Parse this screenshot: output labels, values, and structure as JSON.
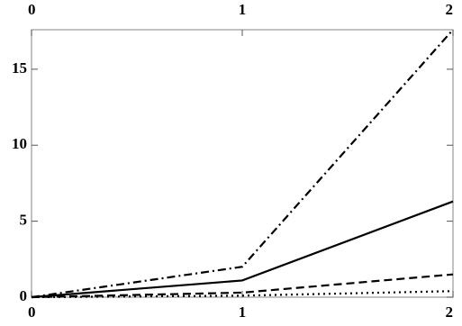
{
  "chart_data": {
    "type": "line",
    "x": [
      0,
      1,
      2
    ],
    "series": [
      {
        "color": "#000000",
        "dash": "dashdot",
        "values": [
          0,
          2.0,
          17.6
        ]
      },
      {
        "color": "#000000",
        "dash": "solid",
        "values": [
          0,
          1.1,
          6.3
        ]
      },
      {
        "color": "#000000",
        "dash": "dashed",
        "values": [
          0,
          0.3,
          1.5
        ]
      },
      {
        "color": "#000000",
        "dash": "dotted",
        "values": [
          0,
          0.1,
          0.4
        ]
      }
    ],
    "xlim": [
      0,
      2
    ],
    "xticks": [
      0,
      1,
      2
    ],
    "ylim": [
      0,
      17.6
    ],
    "yticks": [
      0,
      5,
      10,
      15
    ],
    "grid": false
  }
}
